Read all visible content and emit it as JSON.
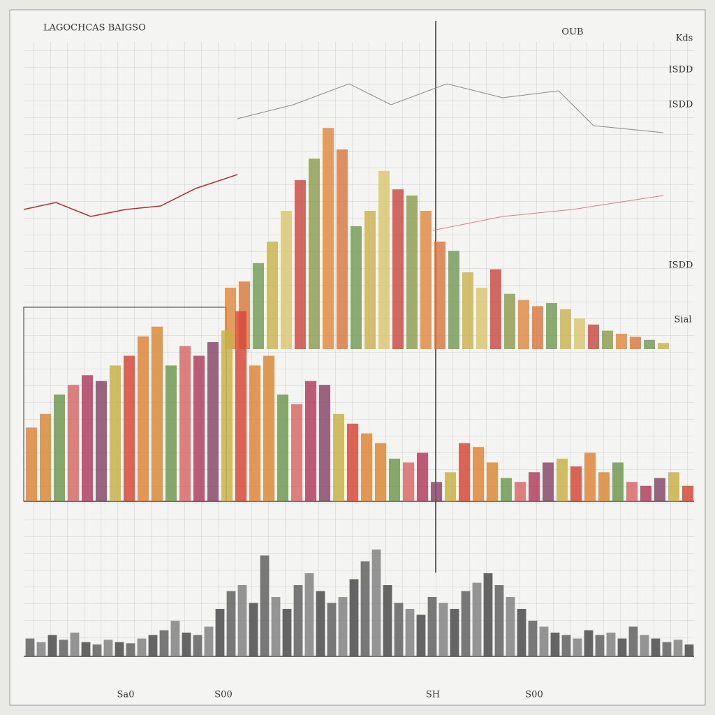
{
  "chart_data": [
    {
      "type": "bar",
      "title": "LAGOCHCAS BAIGSO",
      "annotations": [
        "OUB",
        "Kds",
        "ISDD",
        "ISDD",
        "ISDD",
        "Sial"
      ],
      "ylim": [
        0,
        100
      ],
      "colors": [
        "#e0863a",
        "#d9753a",
        "#6f9a52",
        "#c9b24a",
        "#d8c56a",
        "#c9453d",
        "#8a9a48"
      ],
      "values": [
        20,
        22,
        28,
        35,
        45,
        55,
        62,
        72,
        65,
        40,
        45,
        58,
        52,
        50,
        45,
        35,
        32,
        25,
        20,
        26,
        18,
        16,
        14,
        15,
        13,
        10,
        8,
        6,
        5,
        4,
        3,
        2
      ]
    },
    {
      "type": "bar",
      "annotations": [
        "S00",
        "SH"
      ],
      "ylim": [
        0,
        100
      ],
      "colors": [
        "#e0863a",
        "#d98a3a",
        "#6f9a52",
        "#d96a6a",
        "#b04060",
        "#8a4a6a",
        "#c9b24a",
        "#d84a3a"
      ],
      "values": [
        38,
        45,
        55,
        60,
        65,
        62,
        70,
        75,
        85,
        90,
        70,
        80,
        75,
        82,
        88,
        98,
        70,
        75,
        55,
        50,
        62,
        60,
        45,
        40,
        35,
        30,
        22,
        20,
        25,
        10,
        15,
        30,
        28,
        20,
        12,
        10,
        15,
        20,
        22,
        18,
        25,
        15,
        20,
        10,
        8,
        12,
        15,
        8
      ]
    },
    {
      "type": "bar",
      "annotations": [
        "Sa0",
        "S00"
      ],
      "ylim": [
        0,
        100
      ],
      "colors": [
        "#6a6a6a",
        "#8a8a8a",
        "#555555"
      ],
      "values": [
        15,
        12,
        18,
        14,
        20,
        12,
        10,
        14,
        12,
        11,
        15,
        18,
        22,
        30,
        20,
        18,
        25,
        40,
        55,
        60,
        45,
        85,
        50,
        40,
        60,
        70,
        55,
        45,
        50,
        65,
        80,
        90,
        60,
        45,
        40,
        35,
        50,
        45,
        40,
        55,
        62,
        70,
        60,
        50,
        40,
        30,
        25,
        20,
        18,
        15,
        22,
        18,
        20,
        15,
        25,
        18,
        15,
        12,
        14,
        10
      ]
    }
  ]
}
